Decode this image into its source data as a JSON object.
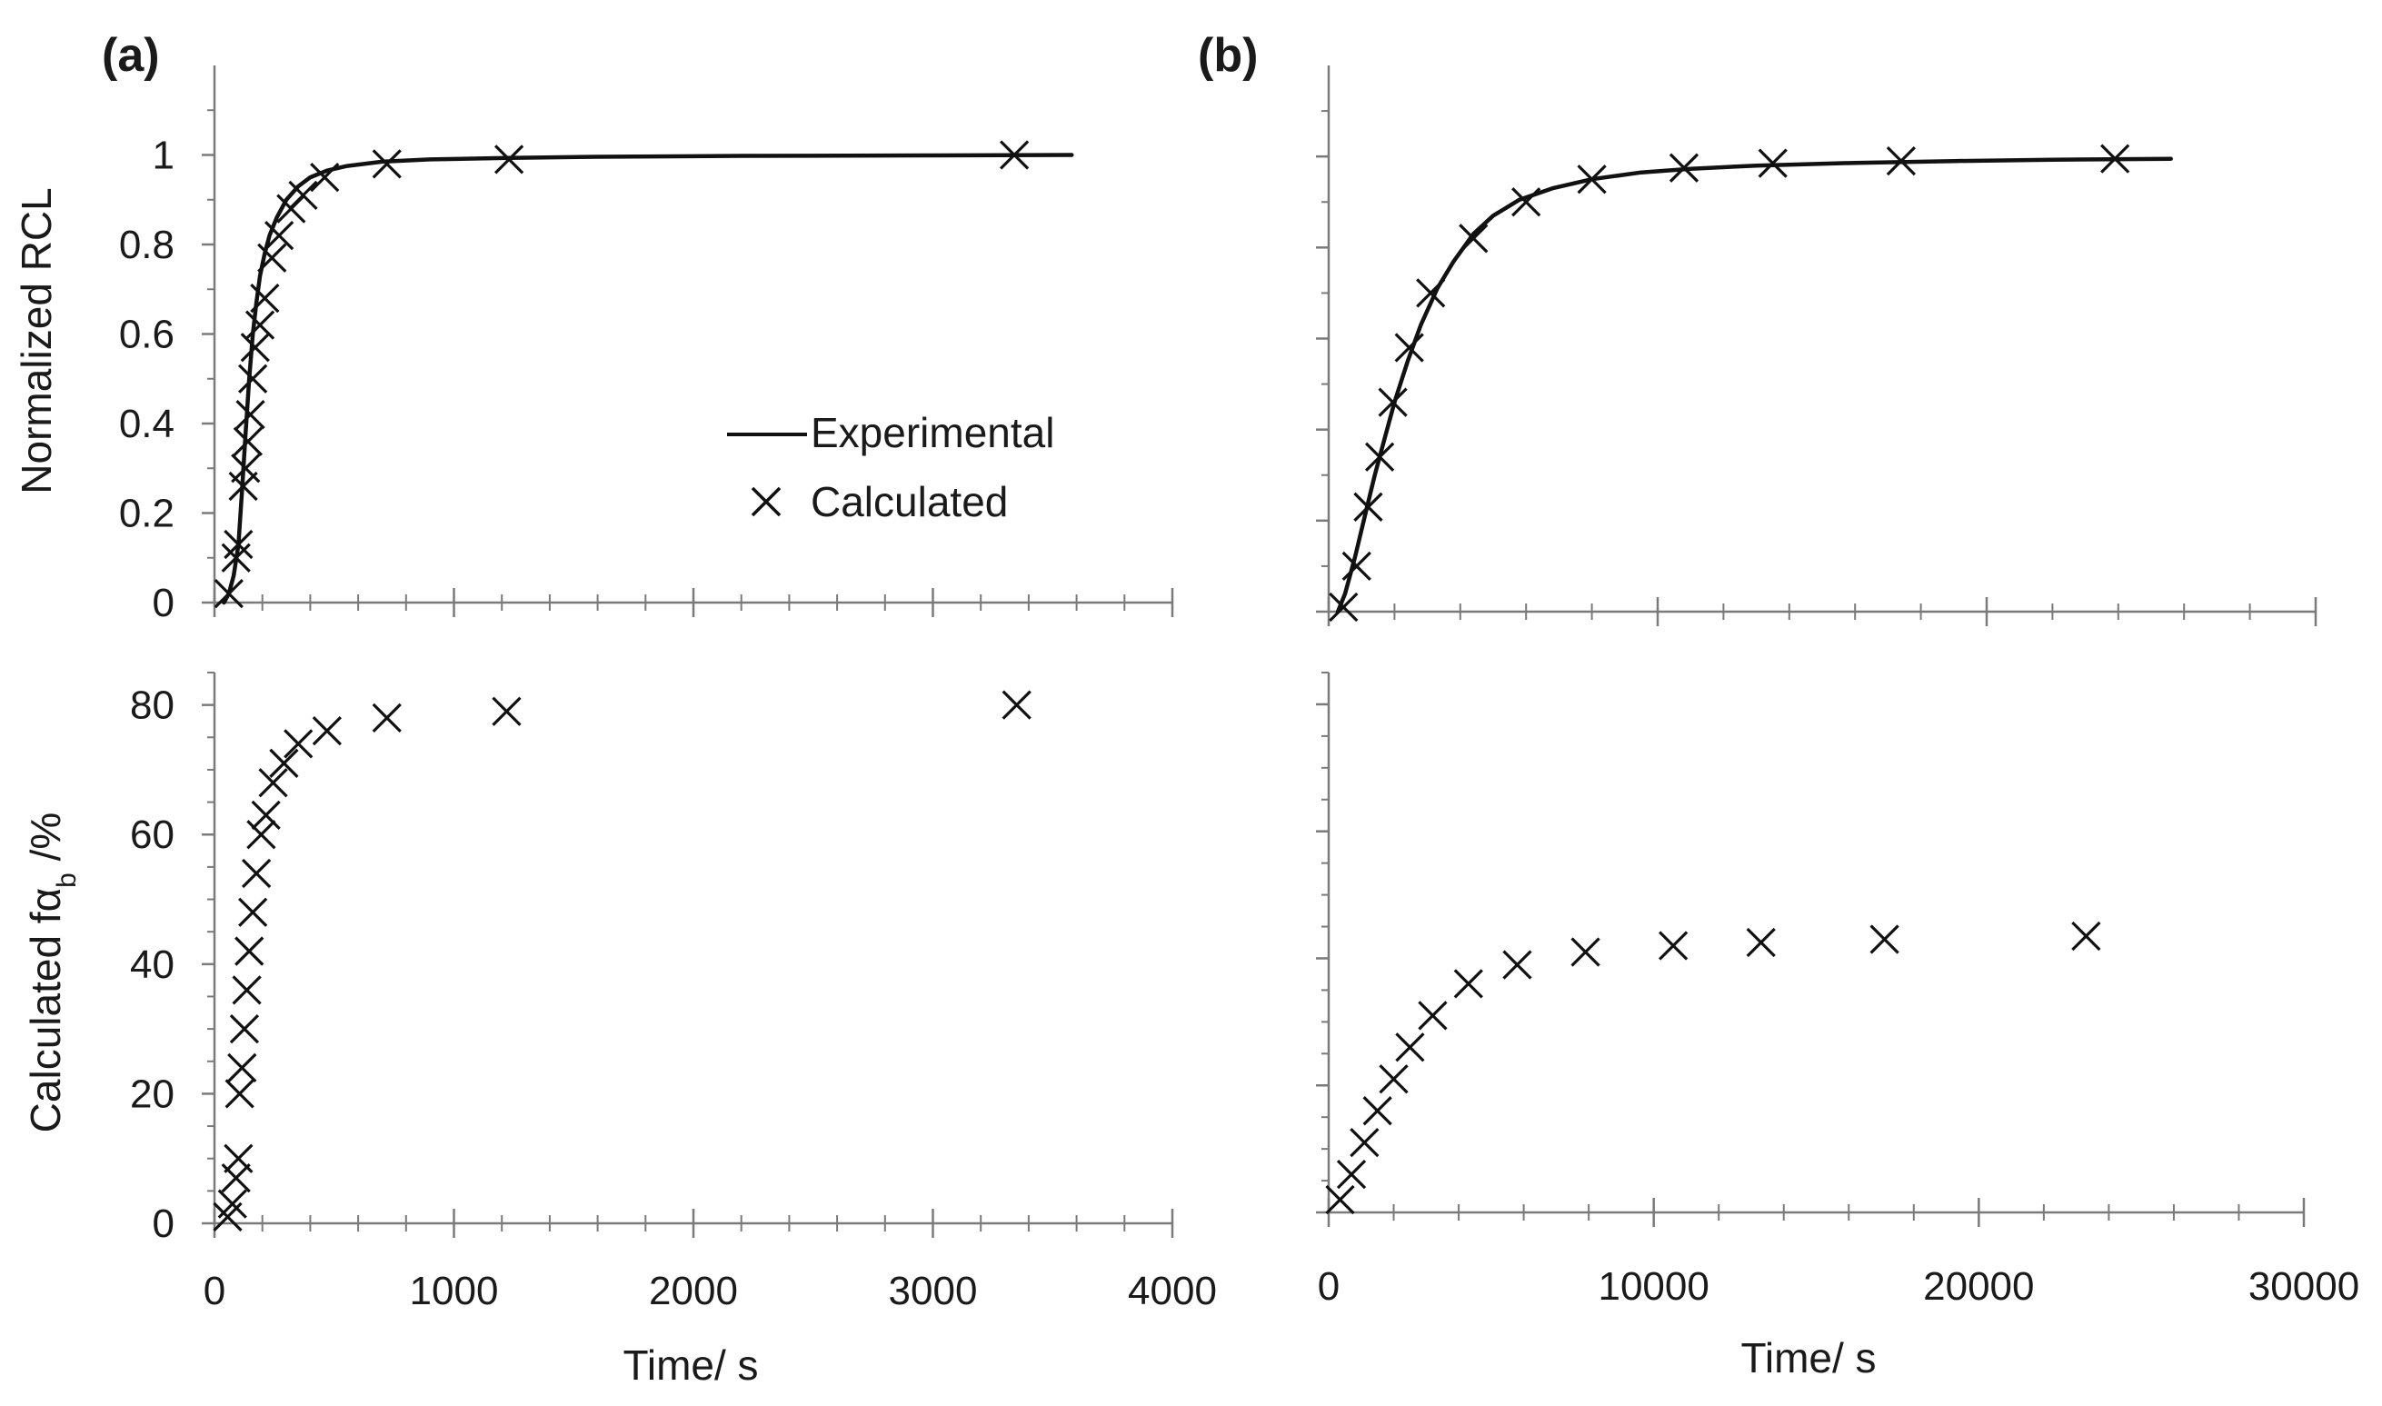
{
  "figure": {
    "panel_labels": [
      "(a)",
      "(b)"
    ],
    "xlabel": "Time/ s",
    "legend": {
      "experimental": "Experimental",
      "calculated": "Calculated"
    }
  },
  "colors": {
    "axis": "#7a7a7a",
    "series": "#111111",
    "background": "#ffffff"
  },
  "chart_data": [
    {
      "id": "a-top",
      "type": "line",
      "panel": "(a)",
      "ylabel": "Normalized RCL",
      "xlabel": "",
      "xlim": [
        0,
        4000
      ],
      "ylim": [
        0,
        1.2
      ],
      "xticks": [
        0,
        1000,
        2000,
        3000,
        4000
      ],
      "yticks": [
        0,
        0.2,
        0.4,
        0.6,
        0.8,
        1
      ],
      "ytick_labels": [
        "0",
        "0.2",
        "0.4",
        "0.6",
        "0.8",
        "1"
      ],
      "grid": false,
      "legend_position": "center-right",
      "series": [
        {
          "name": "Experimental",
          "style": "line",
          "x": [
            40,
            60,
            80,
            100,
            115,
            130,
            145,
            160,
            175,
            190,
            210,
            230,
            260,
            300,
            350,
            400,
            470,
            550,
            700,
            900,
            1200,
            1600,
            2200,
            3000,
            3580
          ],
          "y": [
            0,
            0.02,
            0.06,
            0.13,
            0.25,
            0.38,
            0.5,
            0.6,
            0.67,
            0.73,
            0.78,
            0.82,
            0.86,
            0.9,
            0.93,
            0.95,
            0.965,
            0.975,
            0.985,
            0.99,
            0.993,
            0.996,
            0.998,
            0.999,
            1.0
          ]
        },
        {
          "name": "Calculated",
          "style": "marker-x",
          "x": [
            60,
            90,
            100,
            120,
            130,
            140,
            150,
            160,
            170,
            190,
            210,
            240,
            270,
            320,
            370,
            460,
            720,
            1230,
            3340
          ],
          "y": [
            0.02,
            0.1,
            0.13,
            0.26,
            0.3,
            0.36,
            0.42,
            0.5,
            0.57,
            0.62,
            0.68,
            0.77,
            0.82,
            0.88,
            0.91,
            0.95,
            0.98,
            0.99,
            1.0
          ]
        }
      ]
    },
    {
      "id": "b-top",
      "type": "line",
      "panel": "(b)",
      "ylabel": "",
      "xlabel": "",
      "xlim": [
        0,
        30000
      ],
      "ylim": [
        0,
        1.2
      ],
      "xticks": [
        0,
        10000,
        20000,
        30000
      ],
      "yticks": [
        0,
        0.2,
        0.4,
        0.6,
        0.8,
        1
      ],
      "grid": false,
      "series": [
        {
          "name": "Experimental",
          "style": "line",
          "x": [
            280,
            500,
            800,
            1100,
            1400,
            1700,
            2000,
            2400,
            2800,
            3300,
            3800,
            4400,
            5000,
            5800,
            6800,
            8000,
            9500,
            11000,
            13000,
            16000,
            19000,
            22000,
            25600
          ],
          "y": [
            0,
            0.04,
            0.12,
            0.21,
            0.3,
            0.38,
            0.46,
            0.55,
            0.63,
            0.71,
            0.77,
            0.83,
            0.87,
            0.905,
            0.93,
            0.95,
            0.965,
            0.973,
            0.98,
            0.986,
            0.99,
            0.993,
            0.995
          ]
        },
        {
          "name": "Calculated",
          "style": "marker-x",
          "x": [
            450,
            850,
            1200,
            1550,
            1950,
            2450,
            3100,
            4400,
            6000,
            8000,
            10800,
            13500,
            17400,
            23900
          ],
          "y": [
            0.01,
            0.1,
            0.23,
            0.34,
            0.46,
            0.58,
            0.7,
            0.82,
            0.9,
            0.95,
            0.975,
            0.985,
            0.99,
            0.995
          ]
        }
      ]
    },
    {
      "id": "a-bottom",
      "type": "scatter",
      "panel": "(a)",
      "ylabel_prefix": "Calculated  f",
      "ylabel_greek": "α",
      "ylabel_sub": "b",
      "ylabel_suffix": " /%",
      "xlabel": "Time/ s",
      "xlim": [
        0,
        4000
      ],
      "ylim": [
        0,
        85
      ],
      "xticks": [
        0,
        1000,
        2000,
        3000,
        4000
      ],
      "yticks": [
        0,
        20,
        40,
        60,
        80
      ],
      "grid": false,
      "series": [
        {
          "name": "Calculated",
          "style": "marker-x",
          "x": [
            55,
            75,
            90,
            100,
            105,
            115,
            125,
            135,
            145,
            160,
            175,
            195,
            215,
            245,
            290,
            350,
            470,
            720,
            1220,
            3350
          ],
          "y": [
            1,
            3,
            7,
            10,
            20,
            24,
            30,
            36,
            42,
            48,
            54,
            60,
            63,
            68,
            71,
            74,
            76,
            78,
            79,
            80
          ]
        }
      ]
    },
    {
      "id": "b-bottom",
      "type": "scatter",
      "panel": "(b)",
      "ylabel": "",
      "xlabel": "Time/ s",
      "xlim": [
        0,
        30000
      ],
      "ylim": [
        0,
        85
      ],
      "xticks": [
        0,
        10000,
        20000,
        30000
      ],
      "yticks": [
        0,
        20,
        40,
        60,
        80
      ],
      "grid": false,
      "series": [
        {
          "name": "Calculated",
          "style": "marker-x",
          "x": [
            350,
            700,
            1100,
            1500,
            2000,
            2500,
            3200,
            4300,
            5800,
            7900,
            10600,
            13300,
            17100,
            23300
          ],
          "y": [
            2,
            6,
            11,
            16,
            21,
            26,
            31,
            36,
            39,
            41,
            42,
            42.5,
            43,
            43.5
          ]
        }
      ]
    }
  ]
}
